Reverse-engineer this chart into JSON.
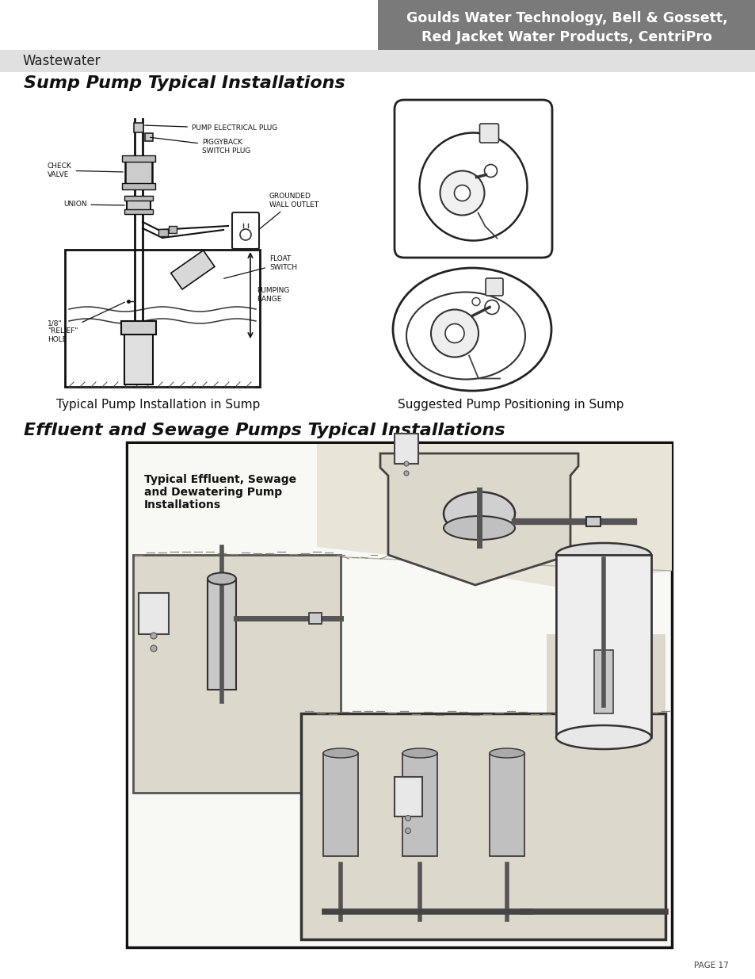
{
  "header_bg_color": "#7a7a7a",
  "header_text_line1": "Goulds Water Technology, Bell & Gossett,",
  "header_text_line2": "Red Jacket Water Products, CentriPro",
  "header_text_color": "#ffffff",
  "header_text_fontsize": 12.5,
  "subheader_bg_color": "#e0e0e0",
  "subheader_text": "Wastewater",
  "subheader_fontsize": 12,
  "section1_title": "Sump Pump Typical Installations",
  "section1_title_fontsize": 16,
  "section2_title": "Effluent and Sewage Pumps Typical Installations",
  "section2_title_fontsize": 16,
  "caption1": "Typical Pump Installation in Sump",
  "caption2": "Suggested Pump Positioning in Sump",
  "caption_fontsize": 11,
  "page_number": "PAGE 17",
  "page_number_fontsize": 7.5,
  "bg_color": "#ffffff",
  "lbl_fs": 6.5,
  "label_pump_elec": "PUMP ELECTRICAL PLUG",
  "label_piggyback": "PIGGYBACK\nSWITCH PLUG",
  "label_grounded": "GROUNDED\nWALL OUTLET",
  "label_check": "CHECK\nVALVE",
  "label_union": "UNION",
  "label_float": "FLOAT\nSWITCH",
  "label_relief": "1/8\"\n\"RELIEF\"\nHOLE",
  "label_pumping": "PUMPING\nRANGE",
  "label_effluent": "Typical Effluent, Sewage\nand Dewatering Pump\nInstallations",
  "effluent_label_fontsize": 10
}
